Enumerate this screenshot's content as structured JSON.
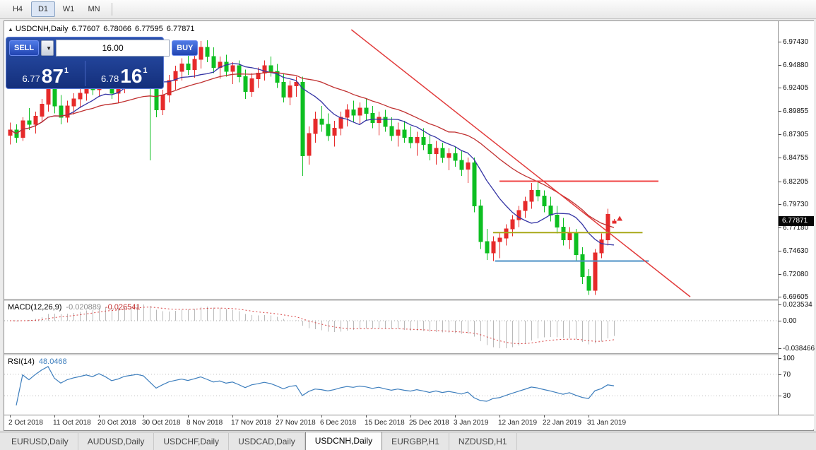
{
  "toolbar": {
    "buttons": [
      {
        "label": "H4",
        "active": false
      },
      {
        "label": "D1",
        "active": true
      },
      {
        "label": "W1",
        "active": false
      },
      {
        "label": "MN",
        "active": false
      }
    ]
  },
  "chart": {
    "header": {
      "collapse_icon": "▲",
      "symbol": "USDCNH,Daily",
      "open": "6.77607",
      "high": "6.78066",
      "low": "6.77595",
      "close": "6.77871"
    }
  },
  "trade_widget": {
    "sell_label": "SELL",
    "buy_label": "BUY",
    "dropdown_icon": "▼",
    "volume": "16.00",
    "bid": {
      "small": "6.77",
      "big": "87",
      "sup": "1"
    },
    "ask": {
      "small": "6.78",
      "big": "16",
      "sup": "1"
    }
  },
  "macd_panel": {
    "name": "MACD(12,26,9)",
    "value_main": "-0.020889",
    "value_signal": "-0.026541",
    "scale_labels": [
      "0.023534",
      "0.00",
      "-0.038466"
    ],
    "params": {
      "fast": 12,
      "slow": 26,
      "signal": 9
    }
  },
  "rsi_panel": {
    "name": "RSI(14)",
    "value": "48.0468",
    "scale_labels": [
      "100",
      "70",
      "30"
    ],
    "period": 14,
    "levels": [
      70,
      30
    ]
  },
  "tabs": [
    {
      "label": "EURUSD,Daily",
      "active": false
    },
    {
      "label": "AUDUSD,Daily",
      "active": false
    },
    {
      "label": "USDCHF,Daily",
      "active": false
    },
    {
      "label": "USDCAD,Daily",
      "active": false
    },
    {
      "label": "USDCNH,Daily",
      "active": true
    },
    {
      "label": "EURGBP,H1",
      "active": false
    },
    {
      "label": "NZDUSD,H1",
      "active": false
    }
  ],
  "chart_data": {
    "type": "candlestick",
    "title": "USDCNH,Daily",
    "price_scale_labels": [
      "6.97430",
      "6.94880",
      "6.92405",
      "6.89855",
      "6.87305",
      "6.84755",
      "6.82205",
      "6.79730",
      "6.77180",
      "6.74630",
      "6.72080",
      "6.69605"
    ],
    "bid_badge": "6.77871",
    "colors": {
      "up_candle": "#e62a2a",
      "down_candle": "#0dbf21",
      "ma_fast": "#3434a4",
      "ma_slow": "#c03030",
      "macd_hist": "#b9b9b9",
      "macd_signal": "#d84040",
      "rsi_line": "#3d7ebd"
    },
    "ma": [
      {
        "period": 10,
        "color": "#3434a4"
      },
      {
        "period": 24,
        "color": "#c03030"
      }
    ],
    "overlays": {
      "hlines": [
        {
          "price": 6.82205,
          "i1": 77,
          "i2": 102,
          "color": "#f04545",
          "width": 2
        },
        {
          "price": 6.766,
          "i1": 76,
          "i2": 99.5,
          "color": "#a8a818",
          "width": 2
        },
        {
          "price": 6.735,
          "i1": 76.3,
          "i2": 100.5,
          "color": "#4a8fc4",
          "width": 2
        }
      ],
      "trendline": {
        "i1": 53.7,
        "p1": 6.9874,
        "i2": 107,
        "p2": 6.696,
        "color": "#e23b3b",
        "width": 1.5
      },
      "marker": {
        "i": 95.9,
        "price": 6.7812,
        "color": "#e03030"
      }
    },
    "x_labels": [
      {
        "i": 0,
        "t": "2 Oct 2018"
      },
      {
        "i": 7,
        "t": "11 Oct 2018"
      },
      {
        "i": 14,
        "t": "20 Oct 2018"
      },
      {
        "i": 21,
        "t": "30 Oct 2018"
      },
      {
        "i": 28,
        "t": "8 Nov 2018"
      },
      {
        "i": 35,
        "t": "17 Nov 2018"
      },
      {
        "i": 42,
        "t": "27 Nov 2018"
      },
      {
        "i": 49,
        "t": "6 Dec 2018"
      },
      {
        "i": 56,
        "t": "15 Dec 2018"
      },
      {
        "i": 63,
        "t": "25 Dec 2018"
      },
      {
        "i": 70,
        "t": "3 Jan 2019"
      },
      {
        "i": 77,
        "t": "12 Jan 2019"
      },
      {
        "i": 84,
        "t": "22 Jan 2019"
      },
      {
        "i": 91,
        "t": "31 Jan 2019"
      }
    ],
    "candles": [
      [
        6.872,
        6.886,
        6.862,
        6.878
      ],
      [
        6.878,
        6.884,
        6.864,
        6.87
      ],
      [
        6.87,
        6.892,
        6.866,
        6.888
      ],
      [
        6.888,
        6.902,
        6.878,
        6.884
      ],
      [
        6.884,
        6.898,
        6.874,
        6.893
      ],
      [
        6.893,
        6.912,
        6.886,
        6.906
      ],
      [
        6.906,
        6.93,
        6.898,
        6.924
      ],
      [
        6.924,
        6.932,
        6.896,
        6.904
      ],
      [
        6.904,
        6.916,
        6.884,
        6.892
      ],
      [
        6.892,
        6.91,
        6.886,
        6.904
      ],
      [
        6.904,
        6.918,
        6.895,
        6.912
      ],
      [
        6.912,
        6.924,
        6.902,
        6.918
      ],
      [
        6.918,
        6.932,
        6.91,
        6.926
      ],
      [
        6.926,
        6.938,
        6.916,
        6.922
      ],
      [
        6.922,
        6.942,
        6.914,
        6.938
      ],
      [
        6.938,
        6.948,
        6.925,
        6.93
      ],
      [
        6.93,
        6.938,
        6.912,
        6.918
      ],
      [
        6.918,
        6.932,
        6.908,
        6.926
      ],
      [
        6.926,
        6.944,
        6.918,
        6.94
      ],
      [
        6.94,
        6.952,
        6.93,
        6.946
      ],
      [
        6.946,
        6.958,
        6.936,
        6.952
      ],
      [
        6.952,
        6.96,
        6.94,
        6.948
      ],
      [
        6.948,
        6.955,
        6.845,
        6.928
      ],
      [
        6.928,
        6.936,
        6.892,
        6.9
      ],
      [
        6.9,
        6.922,
        6.894,
        6.916
      ],
      [
        6.916,
        6.938,
        6.908,
        6.932
      ],
      [
        6.932,
        6.948,
        6.922,
        6.942
      ],
      [
        6.942,
        6.956,
        6.932,
        6.95
      ],
      [
        6.95,
        6.962,
        6.938,
        6.944
      ],
      [
        6.944,
        6.96,
        6.935,
        6.955
      ],
      [
        6.955,
        6.975,
        6.945,
        6.968
      ],
      [
        6.968,
        6.976,
        6.952,
        6.958
      ],
      [
        6.958,
        6.968,
        6.94,
        6.946
      ],
      [
        6.946,
        6.958,
        6.934,
        6.952
      ],
      [
        6.952,
        6.96,
        6.936,
        6.942
      ],
      [
        6.942,
        6.952,
        6.928,
        6.948
      ],
      [
        6.948,
        6.954,
        6.93,
        6.936
      ],
      [
        6.936,
        6.944,
        6.912,
        6.92
      ],
      [
        6.92,
        6.94,
        6.914,
        6.934
      ],
      [
        6.934,
        6.946,
        6.924,
        6.94
      ],
      [
        6.94,
        6.954,
        6.932,
        6.948
      ],
      [
        6.948,
        6.958,
        6.936,
        6.942
      ],
      [
        6.942,
        6.95,
        6.924,
        6.93
      ],
      [
        6.93,
        6.94,
        6.908,
        6.914
      ],
      [
        6.914,
        6.932,
        6.905,
        6.926
      ],
      [
        6.926,
        6.936,
        6.914,
        6.93
      ],
      [
        6.93,
        6.936,
        6.828,
        6.85
      ],
      [
        6.85,
        6.882,
        6.84,
        6.874
      ],
      [
        6.874,
        6.898,
        6.864,
        6.89
      ],
      [
        6.89,
        6.904,
        6.876,
        6.884
      ],
      [
        6.884,
        6.896,
        6.866,
        6.872
      ],
      [
        6.872,
        6.888,
        6.86,
        6.88
      ],
      [
        6.88,
        6.898,
        6.872,
        6.892
      ],
      [
        6.892,
        6.906,
        6.882,
        6.9
      ],
      [
        6.9,
        6.91,
        6.886,
        6.894
      ],
      [
        6.894,
        6.908,
        6.884,
        6.902
      ],
      [
        6.902,
        6.912,
        6.888,
        6.896
      ],
      [
        6.896,
        6.904,
        6.88,
        6.886
      ],
      [
        6.886,
        6.898,
        6.872,
        6.892
      ],
      [
        6.892,
        6.9,
        6.876,
        6.882
      ],
      [
        6.882,
        6.892,
        6.866,
        6.872
      ],
      [
        6.872,
        6.886,
        6.86,
        6.878
      ],
      [
        6.878,
        6.888,
        6.864,
        6.87
      ],
      [
        6.87,
        6.882,
        6.858,
        6.864
      ],
      [
        6.864,
        6.876,
        6.85,
        6.87
      ],
      [
        6.87,
        6.88,
        6.856,
        6.862
      ],
      [
        6.862,
        6.872,
        6.845,
        6.852
      ],
      [
        6.852,
        6.866,
        6.84,
        6.858
      ],
      [
        6.858,
        6.864,
        6.842,
        6.848
      ],
      [
        6.848,
        6.858,
        6.834,
        6.852
      ],
      [
        6.852,
        6.86,
        6.838,
        6.845
      ],
      [
        6.845,
        6.856,
        6.828,
        6.835
      ],
      [
        6.835,
        6.848,
        6.82,
        6.842
      ],
      [
        6.842,
        6.848,
        6.788,
        6.795
      ],
      [
        6.795,
        6.802,
        6.748,
        6.756
      ],
      [
        6.756,
        6.77,
        6.736,
        6.744
      ],
      [
        6.744,
        6.762,
        6.735,
        6.756
      ],
      [
        6.756,
        6.766,
        6.738,
        6.76
      ],
      [
        6.76,
        6.775,
        6.752,
        6.77
      ],
      [
        6.77,
        6.785,
        6.762,
        6.78
      ],
      [
        6.78,
        6.795,
        6.772,
        6.79
      ],
      [
        6.79,
        6.805,
        6.782,
        6.8
      ],
      [
        6.8,
        6.82,
        6.792,
        6.812
      ],
      [
        6.812,
        6.822,
        6.8,
        6.806
      ],
      [
        6.806,
        6.812,
        6.788,
        6.795
      ],
      [
        6.795,
        6.805,
        6.778,
        6.785
      ],
      [
        6.785,
        6.795,
        6.765,
        6.772
      ],
      [
        6.772,
        6.782,
        6.752,
        6.758
      ],
      [
        6.758,
        6.772,
        6.748,
        6.765
      ],
      [
        6.765,
        6.77,
        6.735,
        6.742
      ],
      [
        6.742,
        6.75,
        6.71,
        6.718
      ],
      [
        6.718,
        6.726,
        6.698,
        6.703
      ],
      [
        6.703,
        6.748,
        6.698,
        6.744
      ],
      [
        6.744,
        6.765,
        6.738,
        6.758
      ],
      [
        6.758,
        6.792,
        6.752,
        6.786
      ],
      [
        6.77607,
        6.78066,
        6.77595,
        6.77871
      ]
    ]
  }
}
